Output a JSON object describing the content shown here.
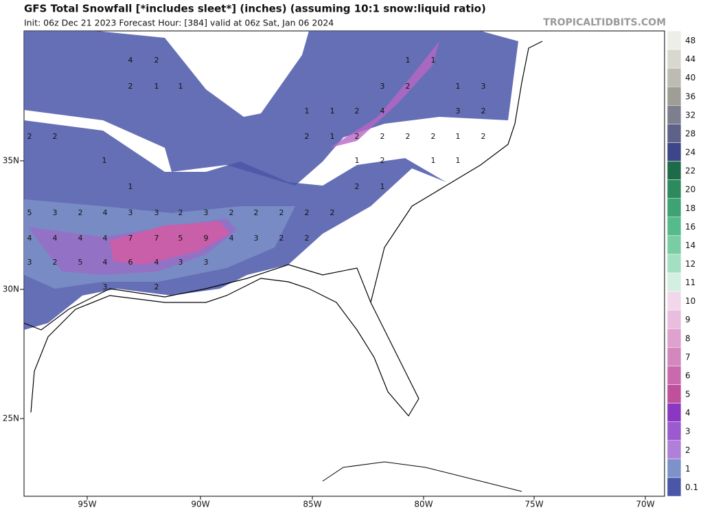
{
  "header": {
    "title": "GFS Total Snowfall [*includes sleet*] (inches) (assuming 10:1 snow:liquid ratio)",
    "subtitle": "Init: 06z Dec 21 2023   Forecast Hour: [384]   valid at 06z Sat, Jan 06 2024",
    "credit": "TROPICALTIDBITS.COM"
  },
  "lat_labels": [
    "35N",
    "30N",
    "25N"
  ],
  "lon_labels": [
    "95W",
    "90W",
    "85W",
    "80W",
    "75W",
    "70W"
  ],
  "colorbar": {
    "labels": [
      "48",
      "44",
      "40",
      "36",
      "32",
      "28",
      "24",
      "22",
      "20",
      "18",
      "16",
      "14",
      "12",
      "11",
      "10",
      "9",
      "8",
      "7",
      "6",
      "5",
      "4",
      "3",
      "2",
      "1",
      "0.1"
    ]
  },
  "map_labels": [
    "4",
    "2",
    "2",
    "1",
    "1",
    "2",
    "2",
    "1",
    "1",
    "5",
    "3",
    "2",
    "4",
    "3",
    "3",
    "2",
    "3",
    "2",
    "2",
    "2",
    "2",
    "2",
    "4",
    "4",
    "4",
    "4",
    "7",
    "7",
    "5",
    "9",
    "4",
    "3",
    "2",
    "2",
    "3",
    "2",
    "5",
    "4",
    "6",
    "4",
    "3",
    "3",
    "3",
    "2",
    "1",
    "1",
    "2",
    "4",
    "2",
    "1",
    "2",
    "2",
    "2",
    "2",
    "1",
    "2",
    "3",
    "2",
    "1",
    "1",
    "1",
    "3",
    "3",
    "2",
    "1",
    "2",
    "1",
    "1",
    "2",
    "1"
  ]
}
